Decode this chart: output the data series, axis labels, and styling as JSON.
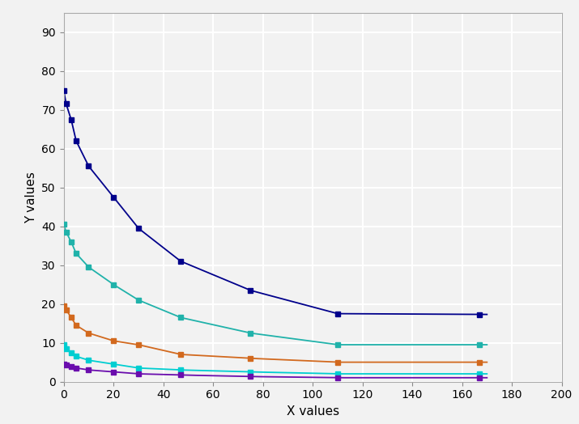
{
  "xlabel": "X values",
  "ylabel": "Y values",
  "xlim": [
    0,
    200
  ],
  "ylim": [
    0,
    95
  ],
  "xticks": [
    0,
    20,
    40,
    60,
    80,
    100,
    120,
    140,
    160,
    180,
    200
  ],
  "yticks": [
    0,
    10,
    20,
    30,
    40,
    50,
    60,
    70,
    80,
    90
  ],
  "series": [
    {
      "color": "#00008B",
      "x_pts": [
        0,
        1,
        3,
        5,
        10,
        20,
        30,
        47,
        75,
        110,
        167
      ],
      "y_pts": [
        75.0,
        71.5,
        67.5,
        62.0,
        55.5,
        47.5,
        39.5,
        31.0,
        23.5,
        17.5,
        17.3
      ]
    },
    {
      "color": "#20B2AA",
      "x_pts": [
        0,
        1,
        3,
        5,
        10,
        20,
        30,
        47,
        75,
        110,
        167
      ],
      "y_pts": [
        40.5,
        38.5,
        36.0,
        33.0,
        29.5,
        25.0,
        21.0,
        16.5,
        12.5,
        9.5,
        9.5
      ]
    },
    {
      "color": "#D2691E",
      "x_pts": [
        0,
        1,
        3,
        5,
        10,
        20,
        30,
        47,
        75,
        110,
        167
      ],
      "y_pts": [
        19.5,
        18.5,
        16.5,
        14.5,
        12.5,
        10.5,
        9.5,
        7.0,
        6.0,
        5.0,
        5.0
      ]
    },
    {
      "color": "#00CED1",
      "x_pts": [
        0,
        1,
        3,
        5,
        10,
        20,
        30,
        47,
        75,
        110,
        167
      ],
      "y_pts": [
        9.5,
        8.5,
        7.5,
        6.5,
        5.5,
        4.5,
        3.5,
        3.0,
        2.5,
        2.0,
        2.0
      ]
    },
    {
      "color": "#6A0DAD",
      "x_pts": [
        0,
        1,
        3,
        5,
        10,
        20,
        30,
        47,
        75,
        110,
        167
      ],
      "y_pts": [
        4.5,
        4.2,
        3.8,
        3.5,
        3.0,
        2.5,
        2.0,
        1.7,
        1.3,
        1.0,
        1.0
      ]
    }
  ],
  "fig_width": 7.15,
  "fig_height": 5.24,
  "dpi": 100,
  "bg_color": "#f2f2f2",
  "grid_color": "#ffffff",
  "grid_linewidth": 1.5,
  "marker": "s",
  "markersize": 5,
  "linewidth": 1.3,
  "xlabel_fontsize": 11,
  "ylabel_fontsize": 11,
  "tick_fontsize": 10
}
